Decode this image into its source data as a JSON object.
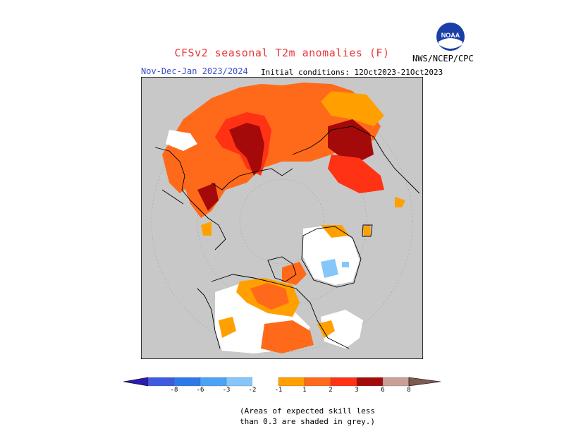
{
  "header": {
    "title": "CFSv2 seasonal T2m anomalies (F)",
    "subtitle": "Nov-Dec-Jan 2023/2024",
    "initial_conditions": "Initial conditions: 12Oct2023-21Oct2023",
    "agency": "NWS/NCEP/CPC"
  },
  "logo": {
    "icon": "noaa-logo-icon",
    "text": "NOAA"
  },
  "map": {
    "projection": "north-polar-stereographic",
    "background_color": "#c8c8c8",
    "land_outline_color": "#000000"
  },
  "legend": {
    "colors": [
      "#2a1cb0",
      "#3d5ae0",
      "#2e79e8",
      "#4aa3f5",
      "#86c6fa",
      "#ffffff",
      "#ffa000",
      "#ff6a1a",
      "#ff3214",
      "#a50a0a",
      "#c8a096",
      "#7d5a50"
    ],
    "tick_labels": [
      "-8",
      "-6",
      "-3",
      "-2",
      "-1",
      "1",
      "2",
      "3",
      "6",
      "8"
    ]
  },
  "note": {
    "line1": "(Areas of expected skill less",
    "line2": "than 0.3 are shaded in grey.)"
  }
}
